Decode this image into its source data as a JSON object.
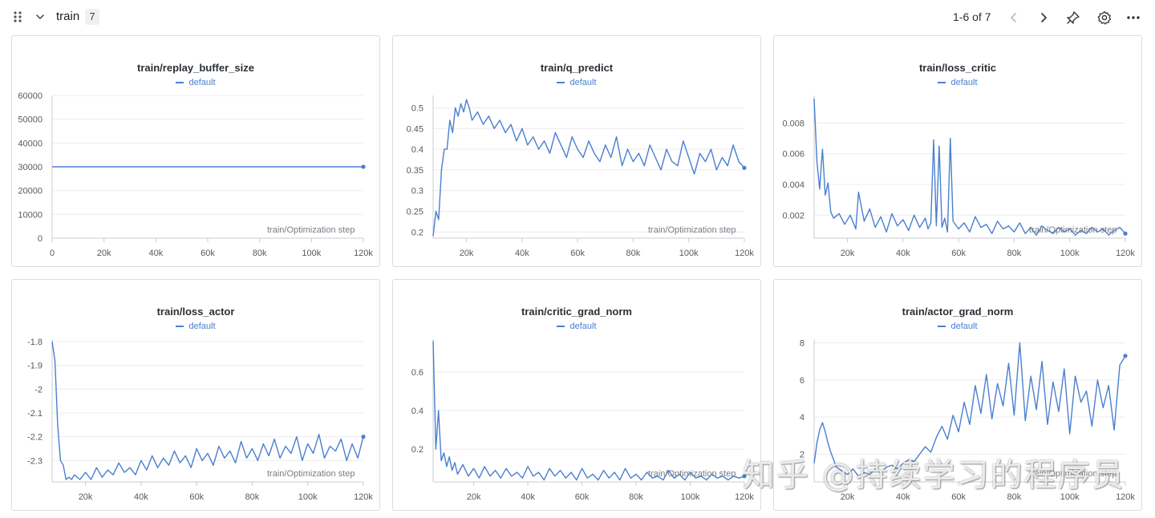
{
  "header": {
    "section_title": "train",
    "count": "7",
    "pager": "1-6 of 7",
    "icons": [
      "drag-handle-icon",
      "chevron-down-icon",
      "chevron-left-icon",
      "chevron-right-icon",
      "pin-icon",
      "gear-icon",
      "more-icon"
    ]
  },
  "colors": {
    "series": "#4a7fd0",
    "grid": "#ececec",
    "axis": "#c9ccd0"
  },
  "watermark": "知乎 @持续学习的程序员",
  "chart_data": [
    {
      "type": "line",
      "title": "train/replay_buffer_size",
      "legend": "default",
      "xlabel": "train/Optimization step",
      "xlim": [
        0,
        120000
      ],
      "ylim": [
        0,
        60000
      ],
      "xticks": [
        0,
        20000,
        40000,
        60000,
        80000,
        100000,
        120000
      ],
      "xtick_labels": [
        "0",
        "20k",
        "40k",
        "60k",
        "80k",
        "100k",
        "120k"
      ],
      "yticks": [
        0,
        10000,
        20000,
        30000,
        40000,
        50000,
        60000
      ],
      "ytick_labels": [
        "0",
        "10000",
        "20000",
        "30000",
        "40000",
        "50000",
        "60000"
      ],
      "series": [
        {
          "name": "default",
          "x": [
            0,
            120000
          ],
          "values": [
            30000,
            30000
          ]
        }
      ]
    },
    {
      "type": "line",
      "title": "train/q_predict",
      "legend": "default",
      "xlabel": "train/Optimization step",
      "xlim": [
        8000,
        120000
      ],
      "ylim": [
        0.185,
        0.53
      ],
      "xticks": [
        20000,
        40000,
        60000,
        80000,
        100000,
        120000
      ],
      "xtick_labels": [
        "20k",
        "40k",
        "60k",
        "80k",
        "100k",
        "120k"
      ],
      "yticks": [
        0.2,
        0.25,
        0.3,
        0.35,
        0.4,
        0.45,
        0.5
      ],
      "ytick_labels": [
        "0.2",
        "0.25",
        "0.3",
        "0.35",
        "0.4",
        "0.45",
        "0.5"
      ],
      "series": [
        {
          "name": "default",
          "x": [
            8000,
            9000,
            10000,
            11000,
            12000,
            13000,
            14000,
            15000,
            16000,
            17000,
            18000,
            19000,
            20000,
            21000,
            22000,
            24000,
            26000,
            28000,
            30000,
            32000,
            34000,
            36000,
            38000,
            40000,
            42000,
            44000,
            46000,
            48000,
            50000,
            52000,
            54000,
            56000,
            58000,
            60000,
            62000,
            64000,
            66000,
            68000,
            70000,
            72000,
            74000,
            76000,
            78000,
            80000,
            82000,
            84000,
            86000,
            88000,
            90000,
            92000,
            94000,
            96000,
            98000,
            100000,
            102000,
            104000,
            106000,
            108000,
            110000,
            112000,
            114000,
            116000,
            118000,
            120000
          ],
          "values": [
            0.19,
            0.25,
            0.23,
            0.35,
            0.4,
            0.4,
            0.47,
            0.44,
            0.5,
            0.48,
            0.51,
            0.49,
            0.52,
            0.5,
            0.47,
            0.49,
            0.46,
            0.48,
            0.45,
            0.47,
            0.44,
            0.46,
            0.42,
            0.45,
            0.41,
            0.43,
            0.4,
            0.42,
            0.39,
            0.44,
            0.41,
            0.38,
            0.43,
            0.4,
            0.38,
            0.42,
            0.39,
            0.37,
            0.41,
            0.38,
            0.43,
            0.36,
            0.4,
            0.37,
            0.39,
            0.36,
            0.41,
            0.38,
            0.35,
            0.4,
            0.37,
            0.36,
            0.42,
            0.38,
            0.34,
            0.39,
            0.37,
            0.4,
            0.35,
            0.38,
            0.36,
            0.41,
            0.37,
            0.355
          ]
        }
      ]
    },
    {
      "type": "line",
      "title": "train/loss_critic",
      "legend": "default",
      "xlabel": "train/Optimization step",
      "xlim": [
        8000,
        120000
      ],
      "ylim": [
        0.0005,
        0.0098
      ],
      "xticks": [
        20000,
        40000,
        60000,
        80000,
        100000,
        120000
      ],
      "xtick_labels": [
        "20k",
        "40k",
        "60k",
        "80k",
        "100k",
        "120k"
      ],
      "yticks": [
        0.002,
        0.004,
        0.006,
        0.008
      ],
      "ytick_labels": [
        "0.002",
        "0.004",
        "0.006",
        "0.008"
      ],
      "series": [
        {
          "name": "default",
          "x": [
            8000,
            9000,
            10000,
            11000,
            12000,
            13000,
            14000,
            15000,
            17000,
            19000,
            21000,
            23000,
            24000,
            26000,
            28000,
            30000,
            32000,
            34000,
            36000,
            38000,
            40000,
            42000,
            44000,
            46000,
            48000,
            49000,
            50000,
            51000,
            52000,
            53000,
            54000,
            55000,
            56000,
            57000,
            58000,
            60000,
            62000,
            64000,
            66000,
            68000,
            70000,
            72000,
            74000,
            76000,
            78000,
            80000,
            82000,
            84000,
            86000,
            88000,
            90000,
            92000,
            94000,
            96000,
            98000,
            100000,
            102000,
            104000,
            106000,
            108000,
            110000,
            112000,
            114000,
            116000,
            118000,
            120000
          ],
          "values": [
            0.0096,
            0.0055,
            0.0037,
            0.0063,
            0.0033,
            0.0041,
            0.0022,
            0.0018,
            0.0021,
            0.0014,
            0.002,
            0.0011,
            0.0035,
            0.0016,
            0.0024,
            0.0012,
            0.0019,
            0.0009,
            0.0021,
            0.0013,
            0.0017,
            0.001,
            0.002,
            0.0012,
            0.0018,
            0.0011,
            0.0015,
            0.0069,
            0.0013,
            0.0065,
            0.0012,
            0.0018,
            0.0009,
            0.007,
            0.0016,
            0.0011,
            0.0015,
            0.0009,
            0.0019,
            0.0012,
            0.0014,
            0.0008,
            0.0016,
            0.0011,
            0.0013,
            0.0009,
            0.0015,
            0.0008,
            0.0012,
            0.0007,
            0.0013,
            0.001,
            0.0008,
            0.0012,
            0.0009,
            0.0011,
            0.0007,
            0.001,
            0.0008,
            0.0012,
            0.0009,
            0.0011,
            0.0007,
            0.001,
            0.0012,
            0.0008
          ]
        }
      ]
    },
    {
      "type": "line",
      "title": "train/loss_actor",
      "legend": "default",
      "xlabel": "train/Optimization step",
      "xlim": [
        8000,
        120000
      ],
      "ylim": [
        -2.39,
        -1.79
      ],
      "xticks": [
        20000,
        40000,
        60000,
        80000,
        100000,
        120000
      ],
      "xtick_labels": [
        "20k",
        "40k",
        "60k",
        "80k",
        "100k",
        "120k"
      ],
      "yticks": [
        -2.3,
        -2.2,
        -2.1,
        -2,
        -1.9,
        -1.8
      ],
      "ytick_labels": [
        "-2.3",
        "-2.2",
        "-2.1",
        "-2",
        "-1.9",
        "-1.8"
      ],
      "series": [
        {
          "name": "default",
          "x": [
            8000,
            9000,
            10000,
            11000,
            12000,
            13000,
            14000,
            15000,
            16000,
            18000,
            20000,
            22000,
            24000,
            26000,
            28000,
            30000,
            32000,
            34000,
            36000,
            38000,
            40000,
            42000,
            44000,
            46000,
            48000,
            50000,
            52000,
            54000,
            56000,
            58000,
            60000,
            62000,
            64000,
            66000,
            68000,
            70000,
            72000,
            74000,
            76000,
            78000,
            80000,
            82000,
            84000,
            86000,
            88000,
            90000,
            92000,
            94000,
            96000,
            98000,
            100000,
            102000,
            104000,
            106000,
            108000,
            110000,
            112000,
            114000,
            116000,
            118000,
            120000
          ],
          "values": [
            -1.8,
            -1.88,
            -2.15,
            -2.3,
            -2.32,
            -2.38,
            -2.37,
            -2.38,
            -2.36,
            -2.38,
            -2.35,
            -2.38,
            -2.33,
            -2.37,
            -2.34,
            -2.36,
            -2.31,
            -2.35,
            -2.33,
            -2.36,
            -2.3,
            -2.34,
            -2.28,
            -2.33,
            -2.29,
            -2.32,
            -2.26,
            -2.31,
            -2.28,
            -2.33,
            -2.25,
            -2.3,
            -2.27,
            -2.32,
            -2.24,
            -2.29,
            -2.26,
            -2.31,
            -2.22,
            -2.29,
            -2.25,
            -2.3,
            -2.23,
            -2.28,
            -2.21,
            -2.29,
            -2.24,
            -2.27,
            -2.2,
            -2.3,
            -2.23,
            -2.27,
            -2.19,
            -2.29,
            -2.24,
            -2.26,
            -2.21,
            -2.3,
            -2.23,
            -2.29,
            -2.2
          ]
        }
      ]
    },
    {
      "type": "line",
      "title": "train/critic_grad_norm",
      "legend": "default",
      "xlabel": "train/Optimization step",
      "xlim": [
        5000,
        120000
      ],
      "ylim": [
        0.03,
        0.77
      ],
      "xticks": [
        20000,
        40000,
        60000,
        80000,
        100000,
        120000
      ],
      "xtick_labels": [
        "20k",
        "40k",
        "60k",
        "80k",
        "100k",
        "120k"
      ],
      "yticks": [
        0.2,
        0.4,
        0.6
      ],
      "ytick_labels": [
        "0.2",
        "0.4",
        "0.6"
      ],
      "series": [
        {
          "name": "default",
          "x": [
            5000,
            6000,
            7000,
            8000,
            9000,
            10000,
            11000,
            12000,
            13000,
            14000,
            16000,
            18000,
            20000,
            22000,
            24000,
            26000,
            28000,
            30000,
            32000,
            34000,
            36000,
            38000,
            40000,
            42000,
            44000,
            46000,
            48000,
            50000,
            52000,
            54000,
            56000,
            58000,
            60000,
            62000,
            64000,
            66000,
            68000,
            70000,
            72000,
            74000,
            76000,
            78000,
            80000,
            82000,
            84000,
            86000,
            88000,
            90000,
            92000,
            94000,
            96000,
            98000,
            100000,
            102000,
            104000,
            106000,
            108000,
            110000,
            112000,
            114000,
            116000,
            118000,
            120000
          ],
          "values": [
            0.76,
            0.2,
            0.4,
            0.14,
            0.18,
            0.11,
            0.16,
            0.09,
            0.13,
            0.07,
            0.12,
            0.06,
            0.1,
            0.05,
            0.11,
            0.06,
            0.09,
            0.05,
            0.1,
            0.06,
            0.08,
            0.05,
            0.11,
            0.06,
            0.08,
            0.04,
            0.1,
            0.06,
            0.09,
            0.05,
            0.08,
            0.04,
            0.1,
            0.05,
            0.07,
            0.04,
            0.09,
            0.05,
            0.08,
            0.04,
            0.1,
            0.05,
            0.07,
            0.04,
            0.08,
            0.05,
            0.06,
            0.04,
            0.09,
            0.05,
            0.07,
            0.04,
            0.08,
            0.05,
            0.06,
            0.04,
            0.07,
            0.05,
            0.06,
            0.04,
            0.06,
            0.05,
            0.06
          ]
        }
      ]
    },
    {
      "type": "line",
      "title": "train/actor_grad_norm",
      "legend": "default",
      "xlabel": "train/Optimization step",
      "xlim": [
        8000,
        120000
      ],
      "ylim": [
        0.5,
        8.2
      ],
      "xticks": [
        20000,
        40000,
        60000,
        80000,
        100000,
        120000
      ],
      "xtick_labels": [
        "20k",
        "40k",
        "60k",
        "80k",
        "100k",
        "120k"
      ],
      "yticks": [
        2,
        4,
        6,
        8
      ],
      "ytick_labels": [
        "2",
        "4",
        "6",
        "8"
      ],
      "series": [
        {
          "name": "default",
          "x": [
            8000,
            9000,
            10000,
            11000,
            12000,
            13000,
            14000,
            16000,
            18000,
            20000,
            22000,
            24000,
            26000,
            28000,
            30000,
            32000,
            34000,
            36000,
            38000,
            40000,
            42000,
            44000,
            46000,
            48000,
            50000,
            52000,
            54000,
            56000,
            58000,
            60000,
            62000,
            64000,
            66000,
            68000,
            70000,
            72000,
            74000,
            76000,
            78000,
            80000,
            82000,
            84000,
            86000,
            88000,
            90000,
            92000,
            94000,
            96000,
            98000,
            100000,
            102000,
            104000,
            106000,
            108000,
            110000,
            112000,
            114000,
            116000,
            118000,
            120000
          ],
          "values": [
            1.5,
            2.6,
            3.3,
            3.7,
            3.2,
            2.6,
            2.1,
            1.3,
            1.1,
            0.9,
            1.2,
            0.8,
            1.0,
            0.9,
            1.2,
            1.0,
            1.3,
            1.4,
            1.2,
            1.5,
            1.7,
            1.6,
            2.0,
            2.4,
            2.1,
            2.9,
            3.5,
            2.8,
            4.1,
            3.2,
            4.8,
            3.6,
            5.7,
            4.2,
            6.3,
            3.9,
            5.8,
            4.6,
            6.9,
            4.1,
            8.0,
            3.8,
            6.2,
            4.4,
            7.0,
            3.6,
            5.9,
            4.3,
            6.6,
            3.1,
            6.2,
            4.8,
            5.4,
            3.5,
            6.0,
            4.5,
            5.7,
            3.3,
            6.8,
            7.3
          ]
        }
      ]
    }
  ]
}
